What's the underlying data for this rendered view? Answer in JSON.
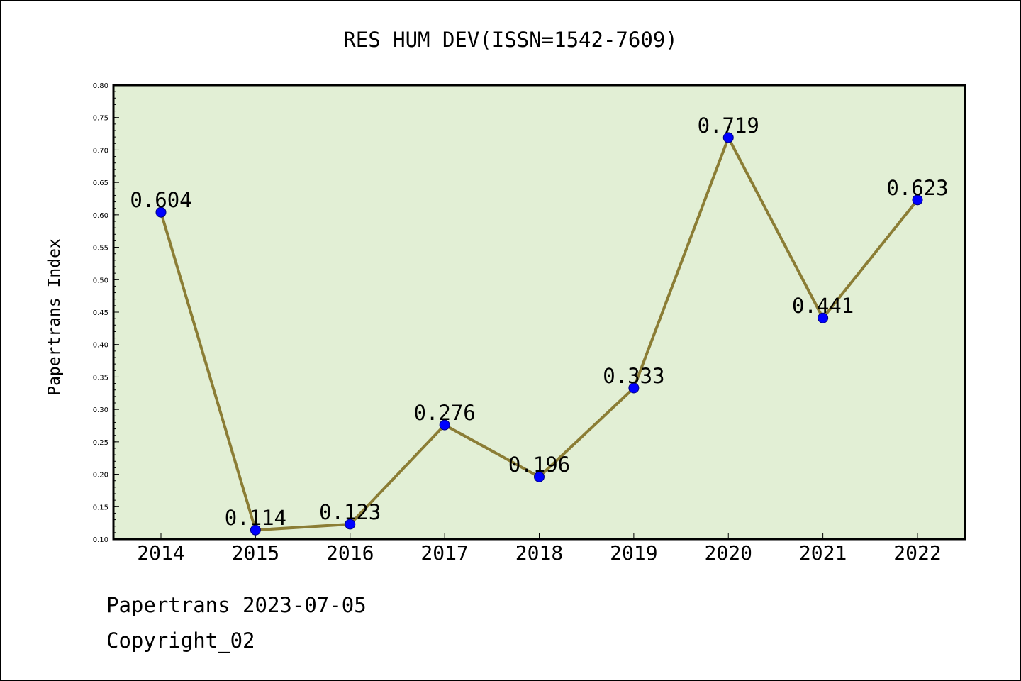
{
  "chart_data": {
    "type": "line",
    "title": "RES HUM DEV(ISSN=1542-7609)",
    "ylabel": "Papertrans Index",
    "xlabel": "",
    "x": [
      "2014",
      "2015",
      "2016",
      "2017",
      "2018",
      "2019",
      "2020",
      "2021",
      "2022"
    ],
    "values": [
      0.604,
      0.114,
      0.123,
      0.276,
      0.196,
      0.333,
      0.719,
      0.441,
      0.623
    ],
    "data_labels": [
      "0.604",
      "0.114",
      "0.123",
      "0.276",
      "0.196",
      "0.333",
      "0.719",
      "0.441",
      "0.623"
    ],
    "ylim": [
      0.1,
      0.8
    ],
    "yticks": [
      "0.10",
      "0.15",
      "0.20",
      "0.25",
      "0.30",
      "0.35",
      "0.40",
      "0.45",
      "0.50",
      "0.55",
      "0.60",
      "0.65",
      "0.70",
      "0.75",
      "0.80"
    ],
    "grid": false,
    "legend": "none",
    "colors": {
      "plot_background": "#e2efd5",
      "line": "#8b7d35",
      "marker": "#0000ff",
      "axis": "#000000"
    }
  },
  "footer": {
    "line1": "Papertrans 2023-07-05",
    "line2": "Copyright_02"
  }
}
